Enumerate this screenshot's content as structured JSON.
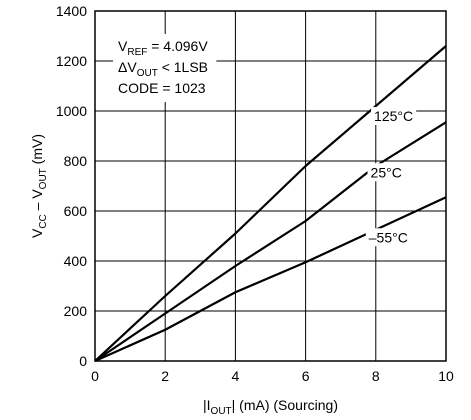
{
  "chart_data": {
    "type": "line",
    "title": "",
    "xlabel": {
      "pre": "|I",
      "sub": "OUT",
      "post": "| (mA) (Sourcing)"
    },
    "ylabel": {
      "p1": "V",
      "s1": "CC",
      "p2": " – V",
      "s2": "OUT",
      "p3": " (mV)"
    },
    "xlim": [
      0,
      10
    ],
    "ylim": [
      0,
      1400
    ],
    "xticks": [
      0,
      2,
      4,
      6,
      8,
      10
    ],
    "yticks": [
      0,
      200,
      400,
      600,
      800,
      1000,
      1200,
      1400
    ],
    "grid": true,
    "annotation": {
      "line1_pre": "V",
      "line1_sub": "REF",
      "line1_post": " = 4.096V",
      "line2_pre": "ΔV",
      "line2_sub": "OUT",
      "line2_post": " < 1LSB",
      "line3": "CODE = 1023"
    },
    "series": [
      {
        "name": "125°C",
        "x": [
          0,
          2,
          4,
          6,
          8,
          10
        ],
        "y": [
          0,
          260,
          510,
          780,
          1020,
          1260
        ]
      },
      {
        "name": "25°C",
        "x": [
          0,
          2,
          4,
          6,
          8,
          10
        ],
        "y": [
          0,
          190,
          380,
          560,
          780,
          955
        ]
      },
      {
        "name": "–55°C",
        "x": [
          0,
          2,
          4,
          6,
          8,
          10
        ],
        "y": [
          0,
          125,
          275,
          395,
          525,
          655
        ]
      }
    ]
  }
}
